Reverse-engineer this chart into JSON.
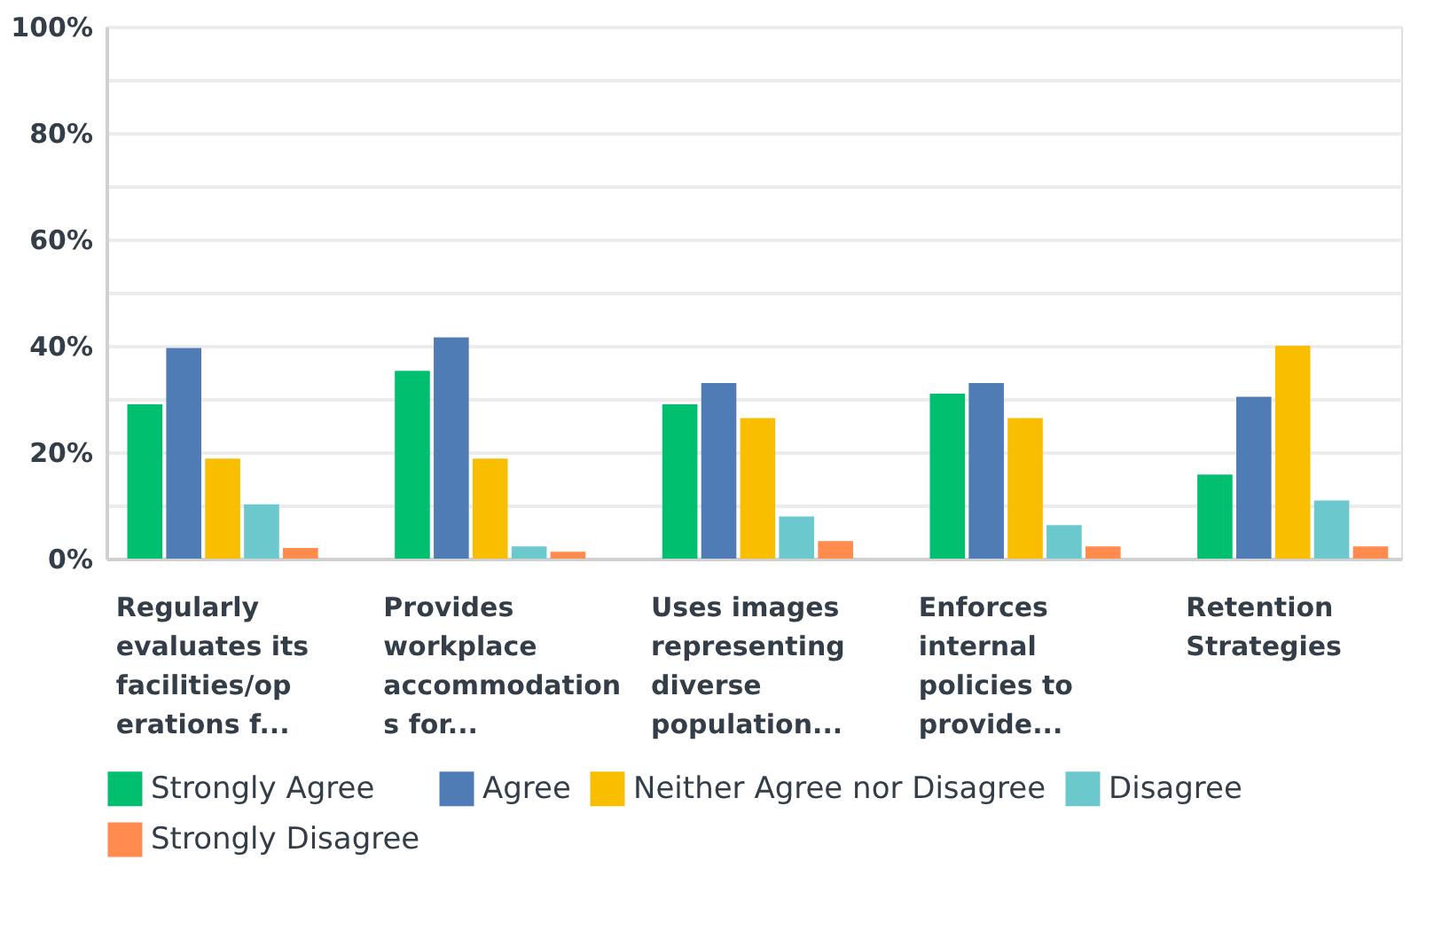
{
  "chart_data": {
    "type": "bar",
    "categories": [
      "Regularly\nevaluates its\nfacilities/op\nerations f...",
      "Provides\nworkplace\naccommodation\ns for...",
      "Uses images\nrepresenting\ndiverse\npopulation...",
      "Enforces\ninternal\npolicies to\nprovide...",
      "Retention\nStrategies"
    ],
    "series": [
      {
        "name": "Strongly Agree",
        "color": "#00bf6f",
        "values": [
          29,
          35.3,
          29,
          31,
          15.8
        ]
      },
      {
        "name": "Agree",
        "color": "#507cb6",
        "values": [
          39.6,
          41.6,
          33,
          33,
          30.4
        ]
      },
      {
        "name": "Neither Agree nor Disagree",
        "color": "#f9be00",
        "values": [
          18.8,
          18.8,
          26.4,
          26.4,
          40
        ]
      },
      {
        "name": "Disagree",
        "color": "#6bc8cd",
        "values": [
          10.2,
          2.3,
          7.9,
          6.3,
          10.9
        ]
      },
      {
        "name": "Strongly Disagree",
        "color": "#ff8b4f",
        "values": [
          2,
          1.3,
          3.3,
          2.3,
          2.3
        ]
      }
    ],
    "ylim": [
      0,
      100
    ],
    "yticks": [
      {
        "value": 0,
        "label": "0%"
      },
      {
        "value": 10,
        "label": null
      },
      {
        "value": 20,
        "label": "20%"
      },
      {
        "value": 30,
        "label": null
      },
      {
        "value": 40,
        "label": "40%"
      },
      {
        "value": 50,
        "label": null
      },
      {
        "value": 60,
        "label": "60%"
      },
      {
        "value": 70,
        "label": null
      },
      {
        "value": 80,
        "label": "80%"
      },
      {
        "value": 90,
        "label": null
      },
      {
        "value": 100,
        "label": "100%"
      }
    ],
    "grid": "y",
    "legend": "bottom"
  }
}
